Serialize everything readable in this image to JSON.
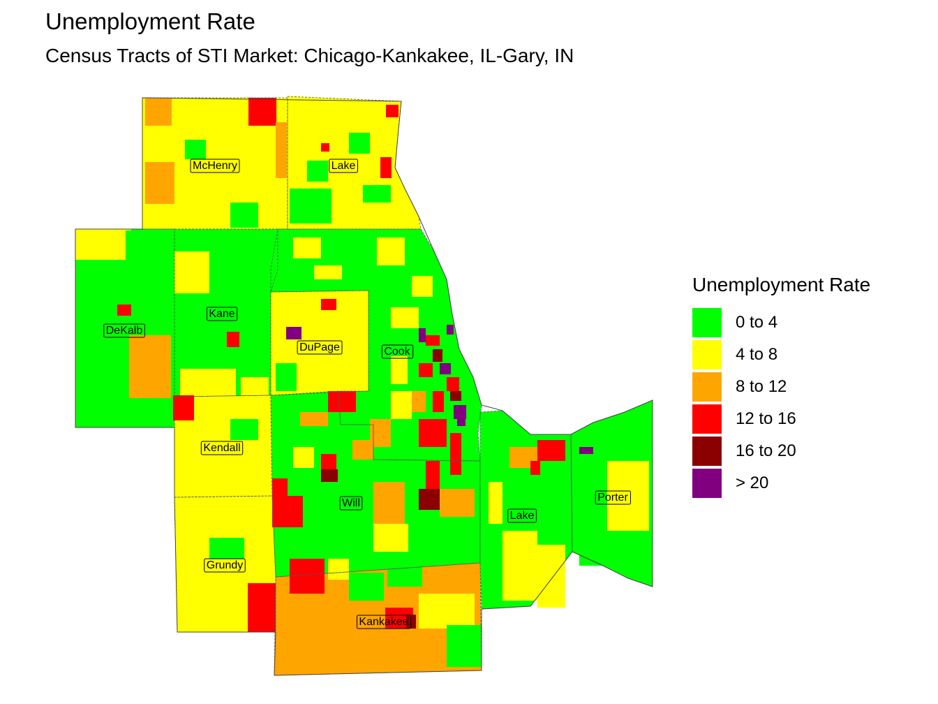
{
  "title": "Unemployment Rate",
  "subtitle": "Census Tracts of STI Market: Chicago-Kankakee, IL-Gary, IN",
  "legend": {
    "title": "Unemployment Rate",
    "items": [
      {
        "label": "0 to 4",
        "color": "#00FF00"
      },
      {
        "label": "4 to 8",
        "color": "#FFFF00"
      },
      {
        "label": "8 to 12",
        "color": "#FFA500"
      },
      {
        "label": "12 to 16",
        "color": "#FF0000"
      },
      {
        "label": "16 to 20",
        "color": "#8B0000"
      },
      {
        "label": "> 20",
        "color": "#800080"
      }
    ]
  },
  "counties": [
    {
      "name": "McHenry",
      "class": "4 to 8"
    },
    {
      "name": "Lake",
      "class": "4 to 8"
    },
    {
      "name": "DeKalb",
      "class": "0 to 4"
    },
    {
      "name": "Kane",
      "class": "0 to 4"
    },
    {
      "name": "DuPage",
      "class": "4 to 8"
    },
    {
      "name": "Cook",
      "class": "0 to 4"
    },
    {
      "name": "Kendall",
      "class": "4 to 8"
    },
    {
      "name": "Will",
      "class": "0 to 4"
    },
    {
      "name": "Lake",
      "class": "0 to 4"
    },
    {
      "name": "Porter",
      "class": "0 to 4"
    },
    {
      "name": "Grundy",
      "class": "4 to 8"
    },
    {
      "name": "Kankakee",
      "class": "8 to 12"
    }
  ]
}
